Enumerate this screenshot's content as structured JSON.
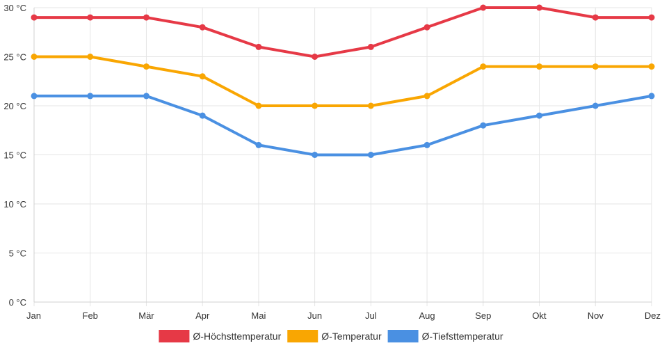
{
  "chart_data": {
    "type": "line",
    "title": "",
    "xlabel": "",
    "ylabel": "",
    "categories": [
      "Jan",
      "Feb",
      "Mär",
      "Apr",
      "Mai",
      "Jun",
      "Jul",
      "Aug",
      "Sep",
      "Okt",
      "Nov",
      "Dez"
    ],
    "y_ticks": [
      {
        "value": 0,
        "label": "0 °C"
      },
      {
        "value": 5,
        "label": "5 °C"
      },
      {
        "value": 10,
        "label": "10 °C"
      },
      {
        "value": 15,
        "label": "15 °C"
      },
      {
        "value": 20,
        "label": "20 °C"
      },
      {
        "value": 25,
        "label": "25 °C"
      },
      {
        "value": 30,
        "label": "30 °C"
      }
    ],
    "ylim": [
      0,
      30
    ],
    "grid": true,
    "legend_position": "bottom-center",
    "series": [
      {
        "name": "Ø-Höchsttemperatur",
        "color": "#e63946",
        "values": [
          29,
          29,
          29,
          28,
          26,
          25,
          26,
          28,
          30,
          30,
          29,
          29
        ]
      },
      {
        "name": "Ø-Temperatur",
        "color": "#f9a602",
        "values": [
          25,
          25,
          24,
          23,
          20,
          20,
          20,
          21,
          24,
          24,
          24,
          24
        ]
      },
      {
        "name": "Ø-Tiefsttemperatur",
        "color": "#4a90e2",
        "values": [
          21,
          21,
          21,
          19,
          16,
          15,
          15,
          16,
          18,
          19,
          20,
          21
        ]
      }
    ]
  }
}
